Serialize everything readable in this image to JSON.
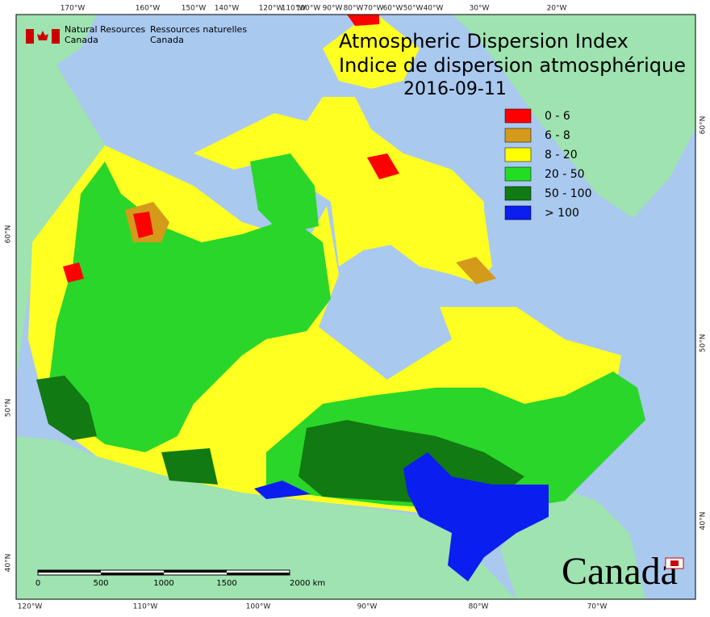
{
  "header": {
    "agency_en": [
      "Natural Resources",
      "Canada"
    ],
    "agency_fr": [
      "Ressources naturelles",
      "Canada"
    ]
  },
  "title": [
    "Atmospheric Dispersion Index",
    "Indice de dispersion atmosphérique"
  ],
  "date": "2016-09-11",
  "legend": [
    {
      "label": "0 - 6",
      "color": "#ff0000"
    },
    {
      "label": "6 - 8",
      "color": "#d49a1a"
    },
    {
      "label": "8 - 20",
      "color": "#ffff00"
    },
    {
      "label": "20 - 50",
      "color": "#22dd22"
    },
    {
      "label": "50 - 100",
      "color": "#127a12"
    },
    {
      "label": "> 100",
      "color": "#0a1ef0"
    }
  ],
  "top_labels": [
    "170°W",
    "160°W",
    "150°W",
    "140°W",
    "120°W",
    "110°W",
    "100°W",
    "90°W",
    "80°W",
    "70°W",
    "60°W",
    "50°W",
    "40°W",
    "30°W",
    "20°W"
  ],
  "bottom_labels": [
    "120°W",
    "110°W",
    "100°W",
    "90°W",
    "80°W",
    "70°W"
  ],
  "left_labels": [
    "60°N",
    "50°N",
    "40°N"
  ],
  "right_labels": [
    "60°N",
    "50°N",
    "40°N"
  ],
  "scale_bar": [
    "0",
    "500",
    "1000",
    "1500",
    "2000 km"
  ],
  "wordmark": "Canada"
}
